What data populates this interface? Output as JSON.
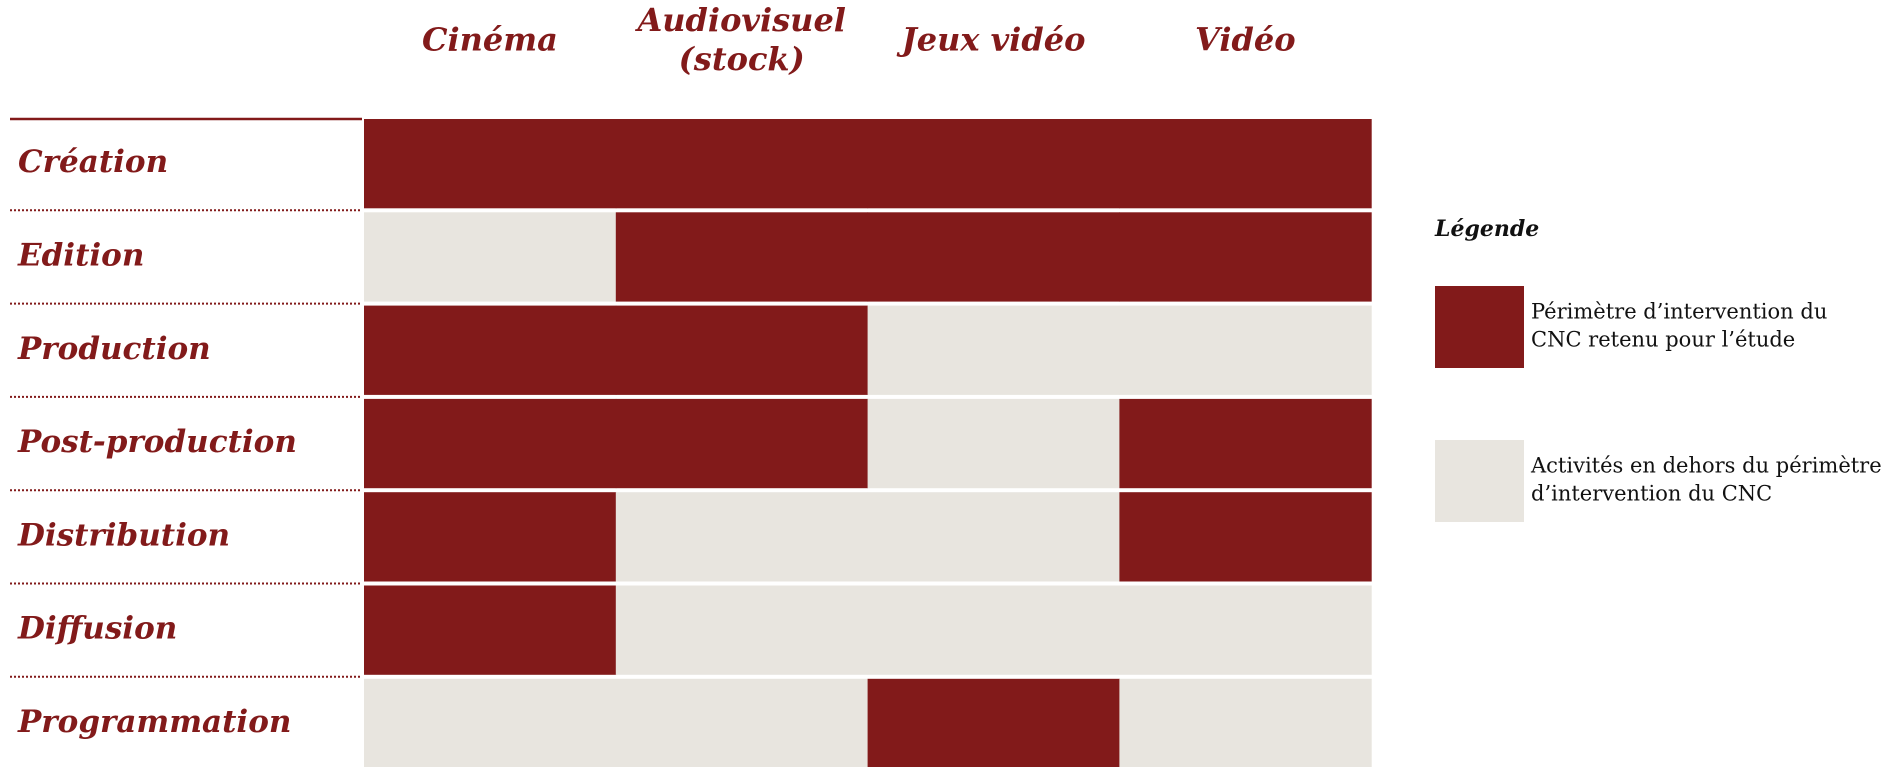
{
  "columns": [
    [
      "Cinéma"
    ],
    [
      "Audiovisuel",
      "(stock)"
    ],
    [
      "Jeux vidéo"
    ],
    [
      "Vidéo"
    ]
  ],
  "rows": [
    {
      "label": "Création",
      "in_scope": [
        true,
        true,
        true,
        true
      ]
    },
    {
      "label": "Edition",
      "in_scope": [
        false,
        true,
        true,
        true
      ]
    },
    {
      "label": "Production",
      "in_scope": [
        true,
        true,
        false,
        false
      ]
    },
    {
      "label": "Post-production",
      "in_scope": [
        true,
        true,
        false,
        true
      ]
    },
    {
      "label": "Distribution",
      "in_scope": [
        true,
        false,
        false,
        true
      ]
    },
    {
      "label": "Diffusion",
      "in_scope": [
        true,
        false,
        false,
        false
      ]
    },
    {
      "label": "Programmation",
      "in_scope": [
        false,
        false,
        true,
        false
      ]
    }
  ],
  "legend": {
    "title": "Légende",
    "items": [
      {
        "lines": [
          "Périmètre d’intervention du",
          "CNC retenu pour l’étude"
        ],
        "color": "#821a1a"
      },
      {
        "lines": [
          "Activités en dehors du périmètre",
          "d’intervention du CNC"
        ],
        "color": "#e8e5df"
      }
    ]
  },
  "colors": {
    "in": "#821a1a",
    "out": "#e8e5df"
  }
}
